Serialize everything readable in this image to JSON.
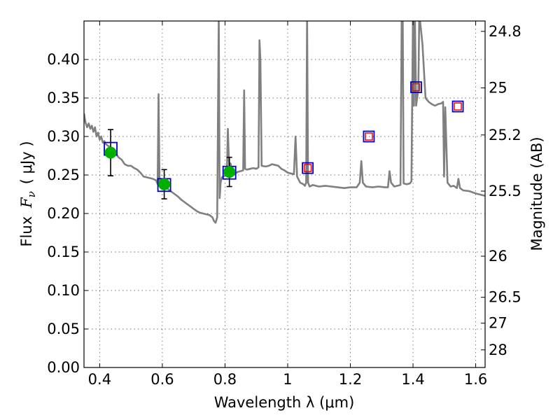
{
  "chart_data": {
    "type": "scatter",
    "xlabel": "Wavelength  λ (μm)",
    "ylabel": "Flux  F_ν  ( μJy )",
    "ylabel_prefix": "Flux",
    "ylabel_symbol": "F",
    "ylabel_subscript": "ν",
    "ylabel_units": "( μJy )",
    "y2label": "Magnitude (AB)",
    "xlim": [
      0.35,
      1.63
    ],
    "ylim": [
      0.0,
      0.45
    ],
    "grid": true,
    "x_ticks": [
      {
        "value": 0.4,
        "label": "0.4"
      },
      {
        "value": 0.6,
        "label": "0.6"
      },
      {
        "value": 0.8,
        "label": "0.8"
      },
      {
        "value": 1.0,
        "label": "1"
      },
      {
        "value": 1.2,
        "label": "1.2"
      },
      {
        "value": 1.4,
        "label": "1.4"
      },
      {
        "value": 1.6,
        "label": "1.6"
      }
    ],
    "y_ticks": [
      {
        "value": 0.0,
        "label": "0.00"
      },
      {
        "value": 0.05,
        "label": "0.05"
      },
      {
        "value": 0.1,
        "label": "0.10"
      },
      {
        "value": 0.15,
        "label": "0.15"
      },
      {
        "value": 0.2,
        "label": "0.20"
      },
      {
        "value": 0.25,
        "label": "0.25"
      },
      {
        "value": 0.3,
        "label": "0.30"
      },
      {
        "value": 0.35,
        "label": "0.35"
      },
      {
        "value": 0.4,
        "label": "0.40"
      }
    ],
    "y2_ticks": [
      {
        "magnitude": 24.8,
        "label": "24.8"
      },
      {
        "magnitude": 25.0,
        "label": "25"
      },
      {
        "magnitude": 25.2,
        "label": "25.2"
      },
      {
        "magnitude": 25.5,
        "label": "25.5"
      },
      {
        "magnitude": 26.0,
        "label": "26"
      },
      {
        "magnitude": 26.5,
        "label": "26.5"
      },
      {
        "magnitude": 27.0,
        "label": "27"
      },
      {
        "magnitude": 28.0,
        "label": "28"
      }
    ],
    "series": [
      {
        "name": "model-spectrum",
        "kind": "line",
        "color": "#808080",
        "x": [
          0.35,
          0.355,
          0.36,
          0.365,
          0.37,
          0.375,
          0.38,
          0.385,
          0.39,
          0.395,
          0.4,
          0.405,
          0.41,
          0.415,
          0.42,
          0.43,
          0.44,
          0.45,
          0.46,
          0.47,
          0.48,
          0.49,
          0.5,
          0.51,
          0.52,
          0.53,
          0.54,
          0.55,
          0.56,
          0.57,
          0.58,
          0.585,
          0.588,
          0.591,
          0.594,
          0.6,
          0.61,
          0.62,
          0.63,
          0.64,
          0.65,
          0.66,
          0.67,
          0.68,
          0.69,
          0.7,
          0.71,
          0.72,
          0.73,
          0.74,
          0.75,
          0.76,
          0.765,
          0.77,
          0.775,
          0.78,
          0.783,
          0.786,
          0.79,
          0.795,
          0.8,
          0.806,
          0.809,
          0.812,
          0.815,
          0.818,
          0.822,
          0.83,
          0.84,
          0.85,
          0.858,
          0.861,
          0.864,
          0.87,
          0.88,
          0.89,
          0.9,
          0.907,
          0.91,
          0.913,
          0.917,
          0.93,
          0.94,
          0.95,
          0.96,
          0.97,
          0.98,
          0.99,
          1.0,
          1.01,
          1.02,
          1.025,
          1.03,
          1.035,
          1.04,
          1.05,
          1.055,
          1.059,
          1.062,
          1.065,
          1.07,
          1.08,
          1.1,
          1.12,
          1.14,
          1.16,
          1.18,
          1.2,
          1.22,
          1.23,
          1.235,
          1.24,
          1.25,
          1.27,
          1.29,
          1.31,
          1.32,
          1.325,
          1.33,
          1.34,
          1.35,
          1.36,
          1.364,
          1.367,
          1.37,
          1.38,
          1.39,
          1.395,
          1.4,
          1.403,
          1.406,
          1.41,
          1.413,
          1.417,
          1.42,
          1.43,
          1.44,
          1.45,
          1.46,
          1.47,
          1.48,
          1.49,
          1.496,
          1.499,
          1.503,
          1.51,
          1.52,
          1.53,
          1.54,
          1.545,
          1.55,
          1.56,
          1.58,
          1.6,
          1.63
        ],
        "y": [
          0.33,
          0.318,
          0.312,
          0.317,
          0.31,
          0.314,
          0.306,
          0.312,
          0.3,
          0.305,
          0.296,
          0.3,
          0.292,
          0.294,
          0.29,
          0.287,
          0.283,
          0.279,
          0.273,
          0.27,
          0.264,
          0.262,
          0.262,
          0.259,
          0.257,
          0.253,
          0.248,
          0.247,
          0.246,
          0.245,
          0.243,
          0.238,
          0.355,
          0.242,
          0.24,
          0.238,
          0.235,
          0.231,
          0.228,
          0.225,
          0.222,
          0.218,
          0.215,
          0.212,
          0.209,
          0.206,
          0.203,
          0.201,
          0.2,
          0.199,
          0.198,
          0.195,
          0.19,
          0.188,
          0.195,
          0.46,
          0.22,
          0.24,
          0.247,
          0.248,
          0.249,
          0.25,
          0.31,
          0.275,
          0.252,
          0.265,
          0.25,
          0.251,
          0.254,
          0.255,
          0.256,
          0.36,
          0.258,
          0.257,
          0.258,
          0.259,
          0.258,
          0.26,
          0.425,
          0.4,
          0.262,
          0.261,
          0.262,
          0.264,
          0.263,
          0.262,
          0.258,
          0.256,
          0.253,
          0.252,
          0.251,
          0.3,
          0.248,
          0.244,
          0.24,
          0.238,
          0.236,
          0.24,
          0.46,
          0.24,
          0.235,
          0.237,
          0.235,
          0.236,
          0.235,
          0.234,
          0.233,
          0.234,
          0.234,
          0.24,
          0.268,
          0.24,
          0.235,
          0.234,
          0.235,
          0.234,
          0.234,
          0.255,
          0.24,
          0.235,
          0.236,
          0.237,
          0.46,
          0.46,
          0.239,
          0.238,
          0.239,
          0.242,
          0.46,
          0.34,
          0.46,
          0.34,
          0.35,
          0.36,
          0.46,
          0.42,
          0.35,
          0.345,
          0.342,
          0.34,
          0.342,
          0.343,
          0.345,
          0.248,
          0.338,
          0.24,
          0.235,
          0.236,
          0.233,
          0.245,
          0.233,
          0.23,
          0.229,
          0.226,
          0.223
        ]
      },
      {
        "name": "observed-photometry",
        "kind": "scatter",
        "marker": "circle",
        "color": "#00b000",
        "points": [
          {
            "x": 0.435,
            "y": 0.279,
            "err": 0.03
          },
          {
            "x": 0.606,
            "y": 0.238,
            "err": 0.019
          },
          {
            "x": 0.814,
            "y": 0.254,
            "err": 0.019
          }
        ]
      },
      {
        "name": "model-photometry",
        "kind": "scatter",
        "marker": "square",
        "edgecolor": "#0000cc",
        "points": [
          {
            "x": 0.435,
            "y": 0.284
          },
          {
            "x": 0.606,
            "y": 0.237
          },
          {
            "x": 0.814,
            "y": 0.253
          },
          {
            "x": 1.064,
            "y": 0.259
          },
          {
            "x": 1.259,
            "y": 0.3
          },
          {
            "x": 1.41,
            "y": 0.364
          },
          {
            "x": 1.543,
            "y": 0.339
          }
        ]
      },
      {
        "name": "predicted-photometry",
        "kind": "scatter",
        "marker": "square",
        "edgecolor": "#ff0000",
        "points": [
          {
            "x": 1.064,
            "y": 0.259
          },
          {
            "x": 1.259,
            "y": 0.3
          },
          {
            "x": 1.41,
            "y": 0.364
          },
          {
            "x": 1.543,
            "y": 0.339
          }
        ]
      }
    ]
  }
}
